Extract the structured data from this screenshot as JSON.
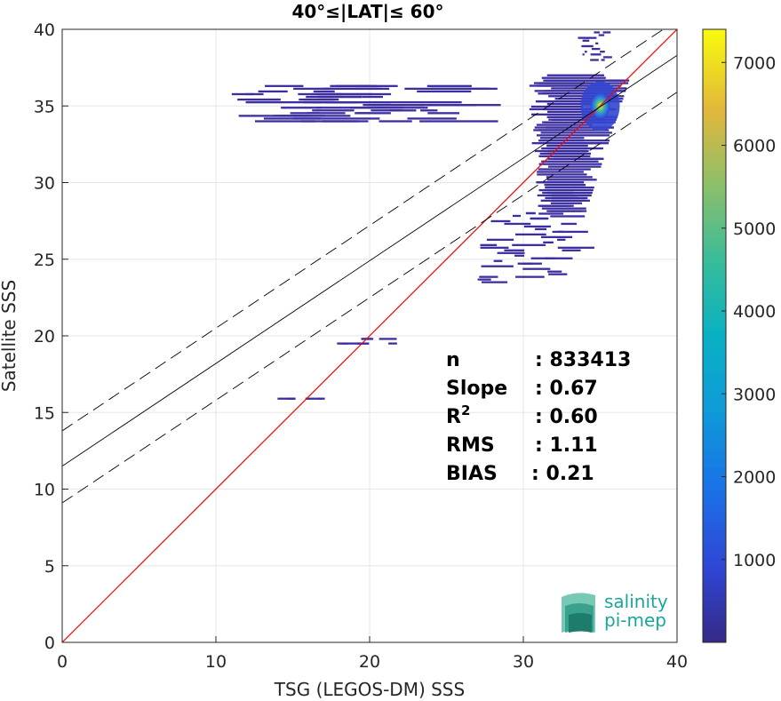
{
  "chart_data": {
    "type": "heatmap",
    "title": "40°≤|LAT|≤ 60°",
    "xlabel": "TSG (LEGOS-DM) SSS",
    "ylabel": "Satellite SSS",
    "xlim": [
      0,
      40
    ],
    "ylim": [
      0,
      40
    ],
    "xticks": [
      0,
      10,
      20,
      30,
      40
    ],
    "yticks": [
      0,
      5,
      10,
      15,
      20,
      25,
      30,
      35,
      40
    ],
    "grid": true,
    "colorbar": {
      "range": [
        0,
        7400
      ],
      "ticks": [
        1000,
        2000,
        3000,
        4000,
        5000,
        6000,
        7000
      ],
      "colormap": "parula"
    },
    "density_clusters": [
      {
        "x": [
          30,
          37
        ],
        "y": [
          27.8,
          37
        ],
        "peak": [
          35,
          35
        ],
        "level": "high"
      },
      {
        "x": [
          33.5,
          36
        ],
        "y": [
          38,
          39.8
        ],
        "level": "low"
      },
      {
        "x": [
          27,
          35
        ],
        "y": [
          23.5,
          28
        ],
        "level": "low"
      },
      {
        "x": [
          11,
          30
        ],
        "y": [
          34,
          36.3
        ],
        "level": "sparse"
      },
      {
        "x": [
          17.5,
          23
        ],
        "y": [
          19.5,
          19.8
        ],
        "level": "sparse"
      },
      {
        "x": [
          14,
          18
        ],
        "y": [
          15.9,
          16.1
        ],
        "level": "sparse"
      }
    ],
    "lines": [
      {
        "name": "1:1",
        "slope": 1,
        "intercept": 0,
        "color": "#ff0000",
        "style": "solid"
      },
      {
        "name": "fit",
        "slope": 0.67,
        "intercept": 11.5,
        "color": "#000000",
        "style": "solid"
      },
      {
        "name": "fit+",
        "slope": 0.67,
        "intercept": 13.8,
        "color": "#000000",
        "style": "dashed"
      },
      {
        "name": "fit-",
        "slope": 0.67,
        "intercept": 9.1,
        "color": "#000000",
        "style": "dashed"
      }
    ],
    "stats": [
      {
        "label": "n",
        "value": ": 833413"
      },
      {
        "label": "Slope",
        "value": ": 0.67"
      },
      {
        "label": "R",
        "sup": "2",
        "value": ": 0.60"
      },
      {
        "label": "RMS",
        "value": ": 1.11"
      },
      {
        "label": "BIAS",
        "value": ": 0.21"
      }
    ]
  },
  "logo": {
    "line1": "salinity",
    "line2": "pi-mep"
  }
}
